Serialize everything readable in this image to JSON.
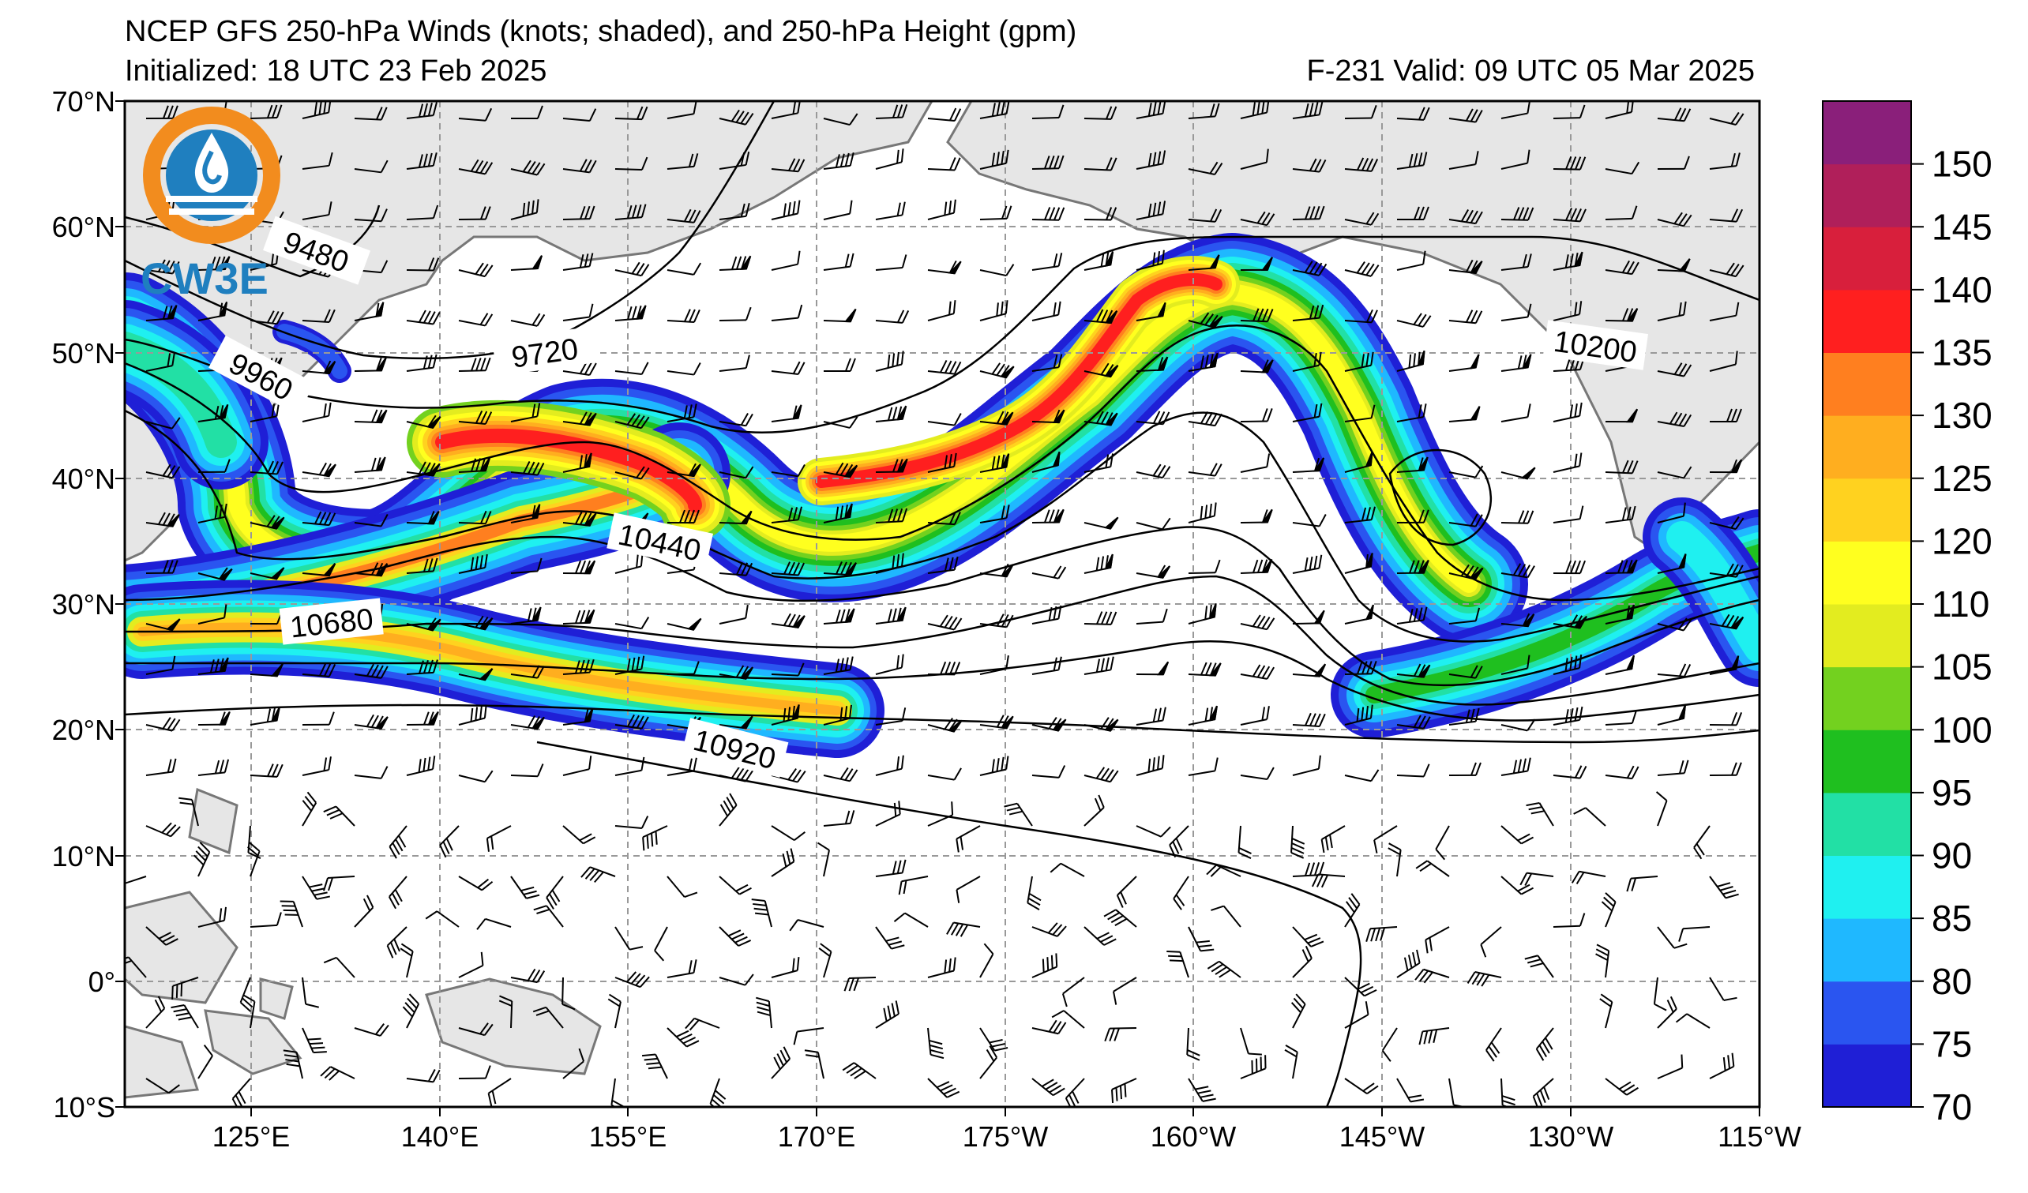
{
  "header": {
    "title": "NCEP GFS 250-hPa Winds (knots; shaded), and 250-hPa Height (gpm)",
    "initialized": "Initialized: 18 UTC 23 Feb 2025",
    "valid": "F-231  Valid: 09 UTC 05 Mar 2025"
  },
  "logo": {
    "text": "CW3E",
    "colors": {
      "orange": "#f28c1e",
      "blue": "#1f7fbf"
    }
  },
  "map": {
    "lat_labels": [
      "70°N",
      "60°N",
      "50°N",
      "40°N",
      "30°N",
      "20°N",
      "10°N",
      "0°",
      "10°S"
    ],
    "lon_labels": [
      "125°E",
      "140°E",
      "155°E",
      "170°E",
      "175°W",
      "160°W",
      "145°W",
      "130°W",
      "115°W"
    ],
    "land_color": "#e6e6e6",
    "contour_labels": [
      "9480",
      "9720",
      "9960",
      "10200",
      "10440",
      "10680",
      "10920"
    ]
  },
  "colorbar": {
    "tick_labels": [
      "70",
      "75",
      "80",
      "85",
      "90",
      "95",
      "100",
      "105",
      "110",
      "120",
      "125",
      "130",
      "135",
      "140",
      "145",
      "150"
    ],
    "colors": [
      "#1f1fd6",
      "#2a55f0",
      "#1fb8ff",
      "#1ff0f0",
      "#22e0a5",
      "#1fbf1f",
      "#73d11f",
      "#e3ec1f",
      "#ffff1f",
      "#ffd21f",
      "#ffae1f",
      "#ff7f1f",
      "#ff1f1f",
      "#d81f3c",
      "#b01f5a",
      "#8a1f7a"
    ]
  },
  "chart_data": {
    "type": "map",
    "field": "250-hPa wind speed (knots) shaded, 250-hPa geopotential height (gpm) contours",
    "contour_values": [
      9480,
      9720,
      9960,
      10200,
      10440,
      10680,
      10920
    ],
    "shading_levels": [
      70,
      75,
      80,
      85,
      90,
      95,
      100,
      105,
      110,
      120,
      125,
      130,
      135,
      140,
      145,
      150
    ]
  }
}
